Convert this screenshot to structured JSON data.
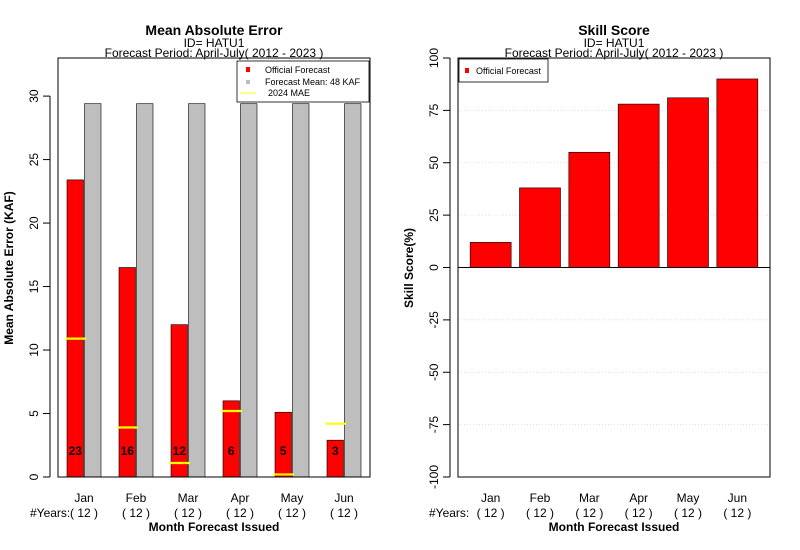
{
  "chart_data": [
    {
      "type": "bar",
      "title": "Mean Absolute Error",
      "subtitle_id": "ID= HATU1",
      "subtitle_period": "Forecast Period: April-July( 2012 - 2023 )",
      "ylabel": "Mean Absolute Error (KAF)",
      "xlabel": "Month Forecast Issued",
      "ylim": [
        0,
        33
      ],
      "yticks": [
        0,
        5,
        10,
        15,
        20,
        25,
        30
      ],
      "categories": [
        "Jan",
        "Feb",
        "Mar",
        "Apr",
        "May",
        "Jun"
      ],
      "years_label": "#Years:",
      "years": [
        "( 12 )",
        "( 12 )",
        "( 12 )",
        "( 12 )",
        "( 12 )",
        "( 12 )"
      ],
      "series": [
        {
          "name": "Official Forecast",
          "color": "#ff0000",
          "values": [
            23.4,
            16.5,
            12.0,
            6.0,
            5.1,
            2.9
          ]
        },
        {
          "name": "Forecast Mean: 48 KAF",
          "color": "#bebebe",
          "values": [
            29.4,
            29.4,
            29.4,
            29.4,
            29.4,
            29.4
          ]
        },
        {
          "name": "2024  MAE",
          "color": "#ffff00",
          "values": [
            10.9,
            3.9,
            1.1,
            5.2,
            0.2,
            4.2
          ]
        }
      ],
      "data_labels": [
        "23",
        "16",
        "12",
        "6",
        "5",
        "3"
      ],
      "legend_position": "top-right"
    },
    {
      "type": "bar",
      "title": "Skill Score",
      "subtitle_id": "ID= HATU1",
      "subtitle_period": "Forecast Period: April-July( 2012 - 2023 )",
      "ylabel": "Skill Score(%)",
      "xlabel": "Month Forecast Issued",
      "ylim": [
        -100,
        100
      ],
      "yticks": [
        -100,
        -75,
        -50,
        -25,
        0,
        25,
        50,
        75,
        100
      ],
      "ytick_labels": [
        "-100",
        "-75",
        "-50",
        "-25",
        "0",
        "25",
        "50",
        "75",
        "100"
      ],
      "categories": [
        "Jan",
        "Feb",
        "Mar",
        "Apr",
        "May",
        "Jun"
      ],
      "years_label": "#Years:",
      "years": [
        "( 12 )",
        "( 12 )",
        "( 12 )",
        "( 12 )",
        "( 12 )",
        "( 12 )"
      ],
      "series": [
        {
          "name": "Official Forecast",
          "color": "#ff0000",
          "values": [
            12,
            38,
            55,
            78,
            81,
            90
          ]
        }
      ],
      "grid": true,
      "legend_position": "top-left"
    }
  ]
}
